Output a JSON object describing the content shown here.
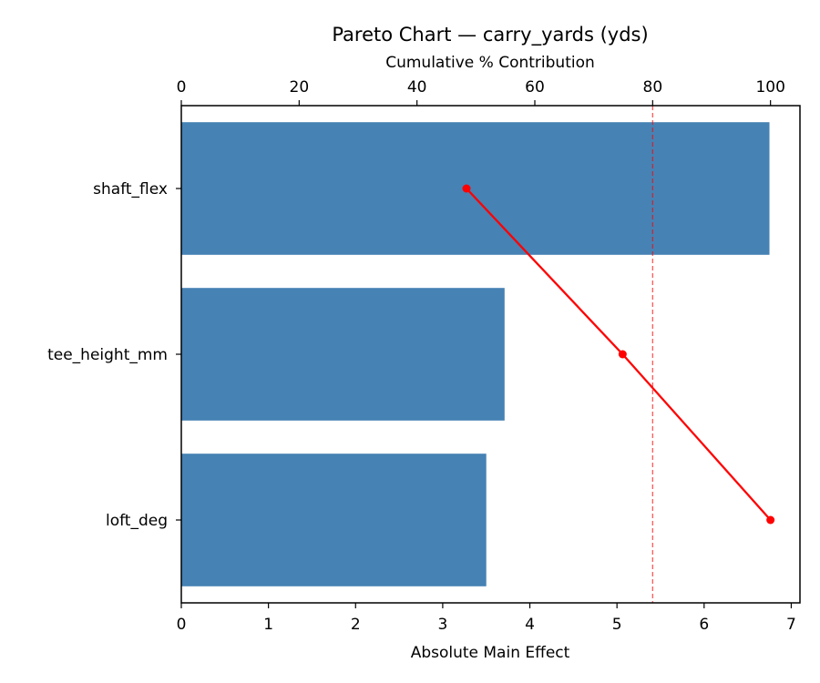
{
  "chart_data": {
    "type": "bar",
    "orientation": "horizontal",
    "title": "Pareto Chart — carry_yards (yds)",
    "xlabel": "Absolute Main Effect",
    "ylabel": "",
    "secondary_xlabel": "Cumulative % Contribution",
    "categories": [
      "shaft_flex",
      "tee_height_mm",
      "loft_deg"
    ],
    "series": [
      {
        "name": "Absolute Main Effect",
        "type": "bar",
        "color": "#4682b4",
        "values": [
          6.75,
          3.71,
          3.5
        ]
      },
      {
        "name": "Cumulative % Contribution",
        "type": "line",
        "color": "#ff0000",
        "axis": "top",
        "values": [
          48.4,
          74.9,
          100.0
        ]
      }
    ],
    "reference_line": {
      "axis": "top",
      "value": 80,
      "style": "dashed",
      "color": "#ff0000",
      "alpha": 0.6
    },
    "xlim": [
      0,
      7.1
    ],
    "xticks": [
      "0",
      "1",
      "2",
      "3",
      "4",
      "5",
      "6",
      "7"
    ],
    "top_xlim": [
      0,
      105
    ],
    "top_xticks": [
      "0",
      "20",
      "40",
      "60",
      "80",
      "100"
    ],
    "grid": false,
    "legend": "none"
  }
}
